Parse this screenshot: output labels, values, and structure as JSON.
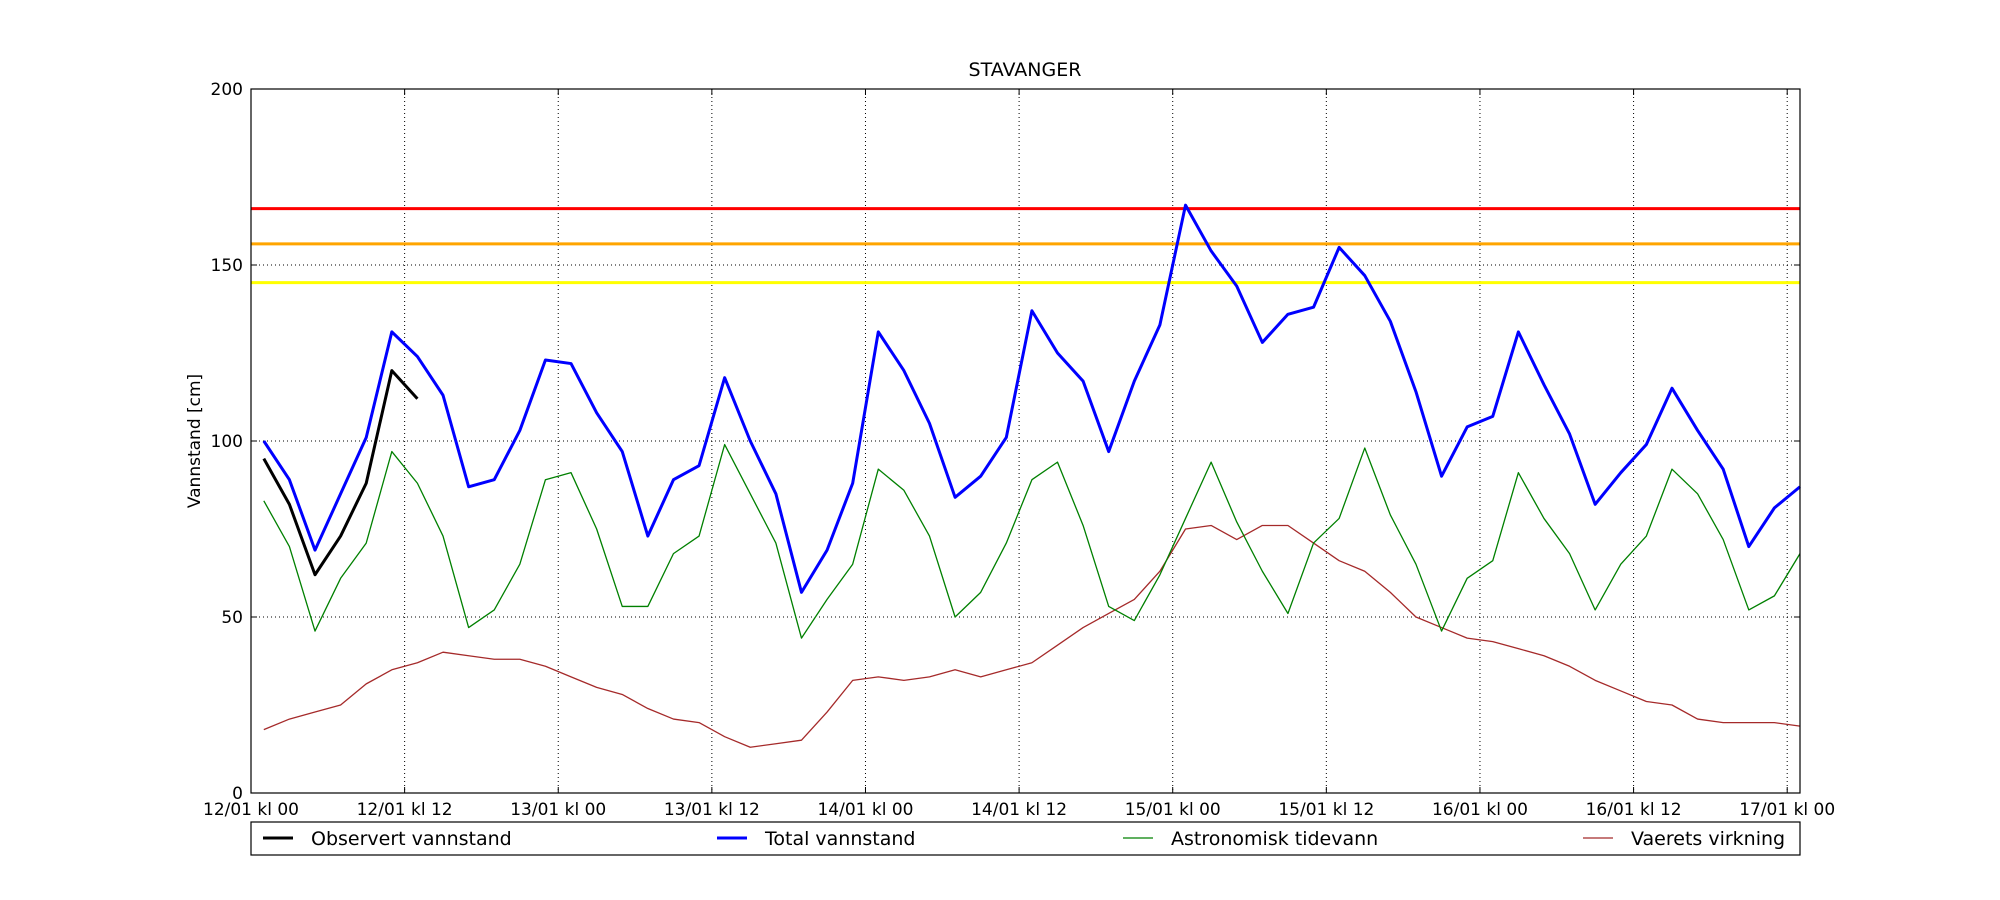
{
  "chart_data": {
    "type": "line",
    "title": "STAVANGER",
    "ylabel": "Vannstand [cm]",
    "x": [
      1,
      3,
      5,
      7,
      9,
      11,
      13,
      15,
      17,
      19,
      21,
      23,
      25,
      27,
      29,
      31,
      33,
      35,
      37,
      39,
      41,
      43,
      45,
      47,
      49,
      51,
      53,
      55,
      57,
      59,
      61,
      63,
      65,
      67,
      69,
      71,
      73,
      75,
      77,
      79,
      81,
      83,
      85,
      87,
      89,
      91,
      93,
      95,
      97,
      99,
      101,
      103,
      105,
      107,
      109,
      111,
      113,
      115,
      117,
      119,
      121
    ],
    "xlim": [
      0,
      121
    ],
    "xticks": [
      {
        "value": 0,
        "label": "12/01 kl 00"
      },
      {
        "value": 12,
        "label": "12/01 kl 12"
      },
      {
        "value": 24,
        "label": "13/01 kl 00"
      },
      {
        "value": 36,
        "label": "13/01 kl 12"
      },
      {
        "value": 48,
        "label": "14/01 kl 00"
      },
      {
        "value": 60,
        "label": "14/01 kl 12"
      },
      {
        "value": 72,
        "label": "15/01 kl 00"
      },
      {
        "value": 84,
        "label": "15/01 kl 12"
      },
      {
        "value": 96,
        "label": "16/01 kl 00"
      },
      {
        "value": 108,
        "label": "16/01 kl 12"
      },
      {
        "value": 120,
        "label": "17/01 kl 00"
      }
    ],
    "ylim": [
      0,
      200
    ],
    "yticks": [
      0,
      50,
      100,
      150,
      200
    ],
    "grid": true,
    "hlines": [
      {
        "value": 166,
        "color": "#ff0000"
      },
      {
        "value": 156,
        "color": "#ffa500"
      },
      {
        "value": 145,
        "color": "#ffff00"
      }
    ],
    "series": [
      {
        "name": "Observert vannstand",
        "color": "#000000",
        "width": 3,
        "values": [
          95,
          82,
          62,
          73,
          88,
          120,
          112,
          null,
          null,
          null,
          null,
          null,
          null,
          null,
          null,
          null,
          null,
          null,
          null,
          null,
          null,
          null,
          null,
          null,
          null,
          null,
          null,
          null,
          null,
          null,
          null,
          null,
          null,
          null,
          null,
          null,
          null,
          null,
          null,
          null,
          null,
          null,
          null,
          null,
          null,
          null,
          null,
          null,
          null,
          null,
          null,
          null,
          null,
          null,
          null,
          null,
          null,
          null,
          null,
          null,
          null
        ]
      },
      {
        "name": "Total vannstand",
        "color": "#0000ff",
        "width": 3,
        "values": [
          100,
          89,
          69,
          85,
          101,
          131,
          124,
          113,
          87,
          89,
          103,
          123,
          122,
          108,
          97,
          73,
          89,
          93,
          118,
          100,
          85,
          57,
          69,
          88,
          131,
          120,
          105,
          84,
          90,
          101,
          137,
          125,
          117,
          97,
          117,
          133,
          167,
          154,
          144,
          128,
          136,
          138,
          155,
          147,
          134,
          114,
          90,
          104,
          107,
          131,
          116,
          102,
          82,
          91,
          99,
          115,
          103,
          92,
          70,
          81,
          87
        ]
      },
      {
        "name": "Astronomisk tidevann",
        "color": "#008000",
        "width": 1.3,
        "values": [
          83,
          70,
          46,
          61,
          71,
          97,
          88,
          73,
          47,
          52,
          65,
          89,
          91,
          75,
          53,
          53,
          68,
          73,
          99,
          85,
          71,
          44,
          55,
          65,
          92,
          86,
          73,
          50,
          57,
          71,
          89,
          94,
          76,
          53,
          49,
          62,
          78,
          94,
          77,
          63,
          51,
          71,
          78,
          98,
          79,
          65,
          46,
          61,
          66,
          91,
          78,
          68,
          52,
          65,
          73,
          92,
          85,
          72,
          52,
          56,
          68
        ]
      },
      {
        "name": "Vaerets virkning",
        "color": "#a52a2a",
        "width": 1.3,
        "values": [
          18,
          21,
          23,
          25,
          31,
          35,
          37,
          40,
          39,
          38,
          38,
          36,
          33,
          30,
          28,
          24,
          21,
          20,
          16,
          13,
          14,
          15,
          23,
          32,
          33,
          32,
          33,
          35,
          33,
          35,
          37,
          42,
          47,
          51,
          55,
          63,
          75,
          76,
          72,
          76,
          76,
          71,
          66,
          63,
          57,
          50,
          47,
          44,
          43,
          41,
          39,
          36,
          32,
          29,
          26,
          25,
          21,
          20,
          20,
          20,
          19
        ]
      }
    ]
  }
}
